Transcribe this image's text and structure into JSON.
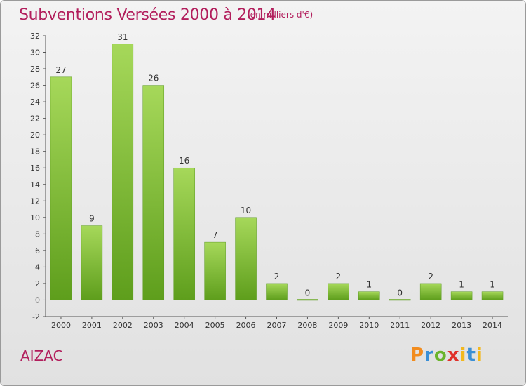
{
  "header": {
    "title": "Subventions Versées 2000 à 2014",
    "subtitle": "(en milliers d'€)"
  },
  "footer": {
    "commune": "AIZAC",
    "logo": "Proxiti"
  },
  "chart_data": {
    "type": "bar",
    "title": "Subventions Versées 2000 à 2014",
    "subtitle": "(en milliers d'€)",
    "categories": [
      "2000",
      "2001",
      "2002",
      "2003",
      "2004",
      "2005",
      "2006",
      "2007",
      "2008",
      "2009",
      "2010",
      "2011",
      "2012",
      "2013",
      "2014"
    ],
    "values": [
      27,
      9,
      31,
      26,
      16,
      7,
      10,
      2,
      0,
      2,
      1,
      0,
      2,
      1,
      1
    ],
    "ylim": [
      -2,
      32
    ],
    "yticks": [
      -2,
      0,
      2,
      4,
      6,
      8,
      10,
      12,
      14,
      16,
      18,
      20,
      22,
      24,
      26,
      28,
      30,
      32
    ],
    "grid": false,
    "bar_color": "#7cc23a"
  }
}
